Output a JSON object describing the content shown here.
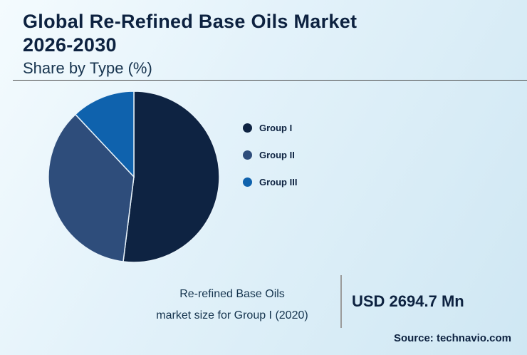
{
  "page": {
    "title_line1": "Global Re-Refined Base Oils Market",
    "title_line2": "2026-2030",
    "subtitle": "Share by Type (%)"
  },
  "chart_data": {
    "type": "pie",
    "title": "Global Re-Refined Base Oils Market 2026-2030",
    "subtitle": "Share by Type (%)",
    "categories": [
      "Group I",
      "Group II",
      "Group III"
    ],
    "values": [
      52,
      36,
      12
    ],
    "colors": [
      "#0e2342",
      "#2e4d7b",
      "#0f62ad"
    ],
    "legend_position": "right",
    "start_angle": "top",
    "direction": "clockwise",
    "annotation": {
      "label": "Re-refined Base Oils market size for Group I (2020)",
      "value": "USD 2694.7 Mn"
    }
  },
  "footer": {
    "caption_line1": "Re-refined Base Oils",
    "caption_line2": "market size for Group I (2020)",
    "value": "USD 2694.7 Mn",
    "source": "Source: technavio.com"
  }
}
